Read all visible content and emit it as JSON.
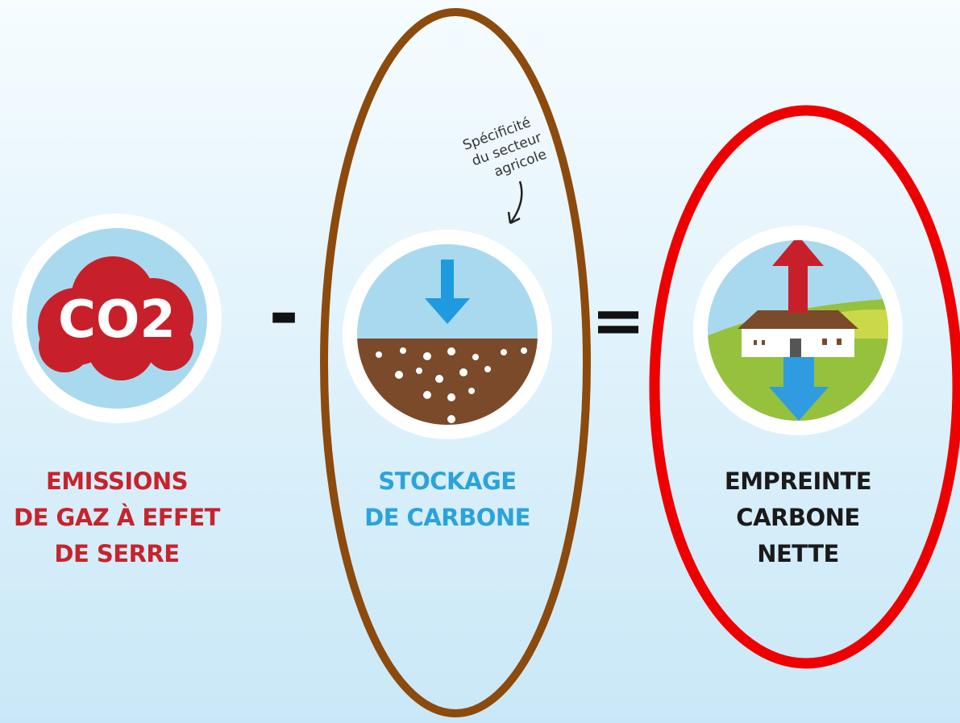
{
  "operators": [
    "-",
    "="
  ],
  "annotation": {
    "lines": [
      "Spécificité",
      "du secteur",
      "agricole"
    ]
  },
  "items": [
    {
      "icon_text": "CO2",
      "label_lines": [
        "EMISSIONS",
        "DE GAZ À EFFET",
        "DE SERRE"
      ]
    },
    {
      "label_lines": [
        "STOCKAGE",
        "DE CARBONE"
      ]
    },
    {
      "label_lines": [
        "EMPREINTE",
        "CARBONE",
        "NETTE"
      ]
    }
  ]
}
